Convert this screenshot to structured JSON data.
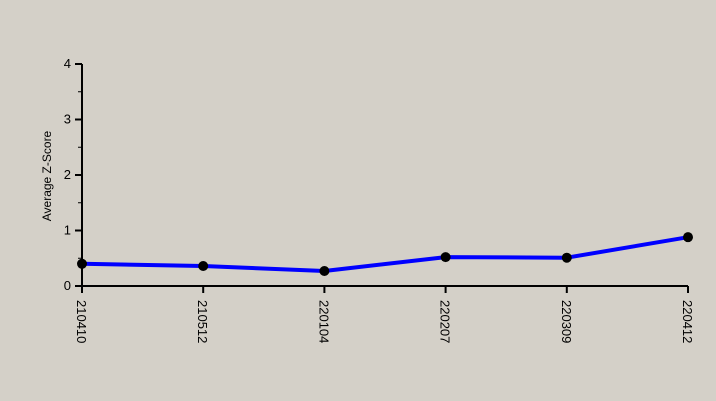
{
  "chart_data": {
    "type": "line",
    "title": "",
    "xlabel": "",
    "ylabel": "Average Z-Score",
    "categories": [
      "210410",
      "210512",
      "220104",
      "220207",
      "220309",
      "220412"
    ],
    "series": [
      {
        "values": [
          0.4,
          0.36,
          0.27,
          0.52,
          0.51,
          0.88
        ],
        "color": "#0000ff",
        "marker_color": "#000000"
      }
    ],
    "ylim": [
      0,
      4
    ],
    "yticks": [
      "0",
      "1",
      "2",
      "3",
      "4"
    ],
    "grid": false,
    "legend": "none",
    "colors": {
      "background": "#d4d0c8",
      "axis": "#000000"
    }
  }
}
